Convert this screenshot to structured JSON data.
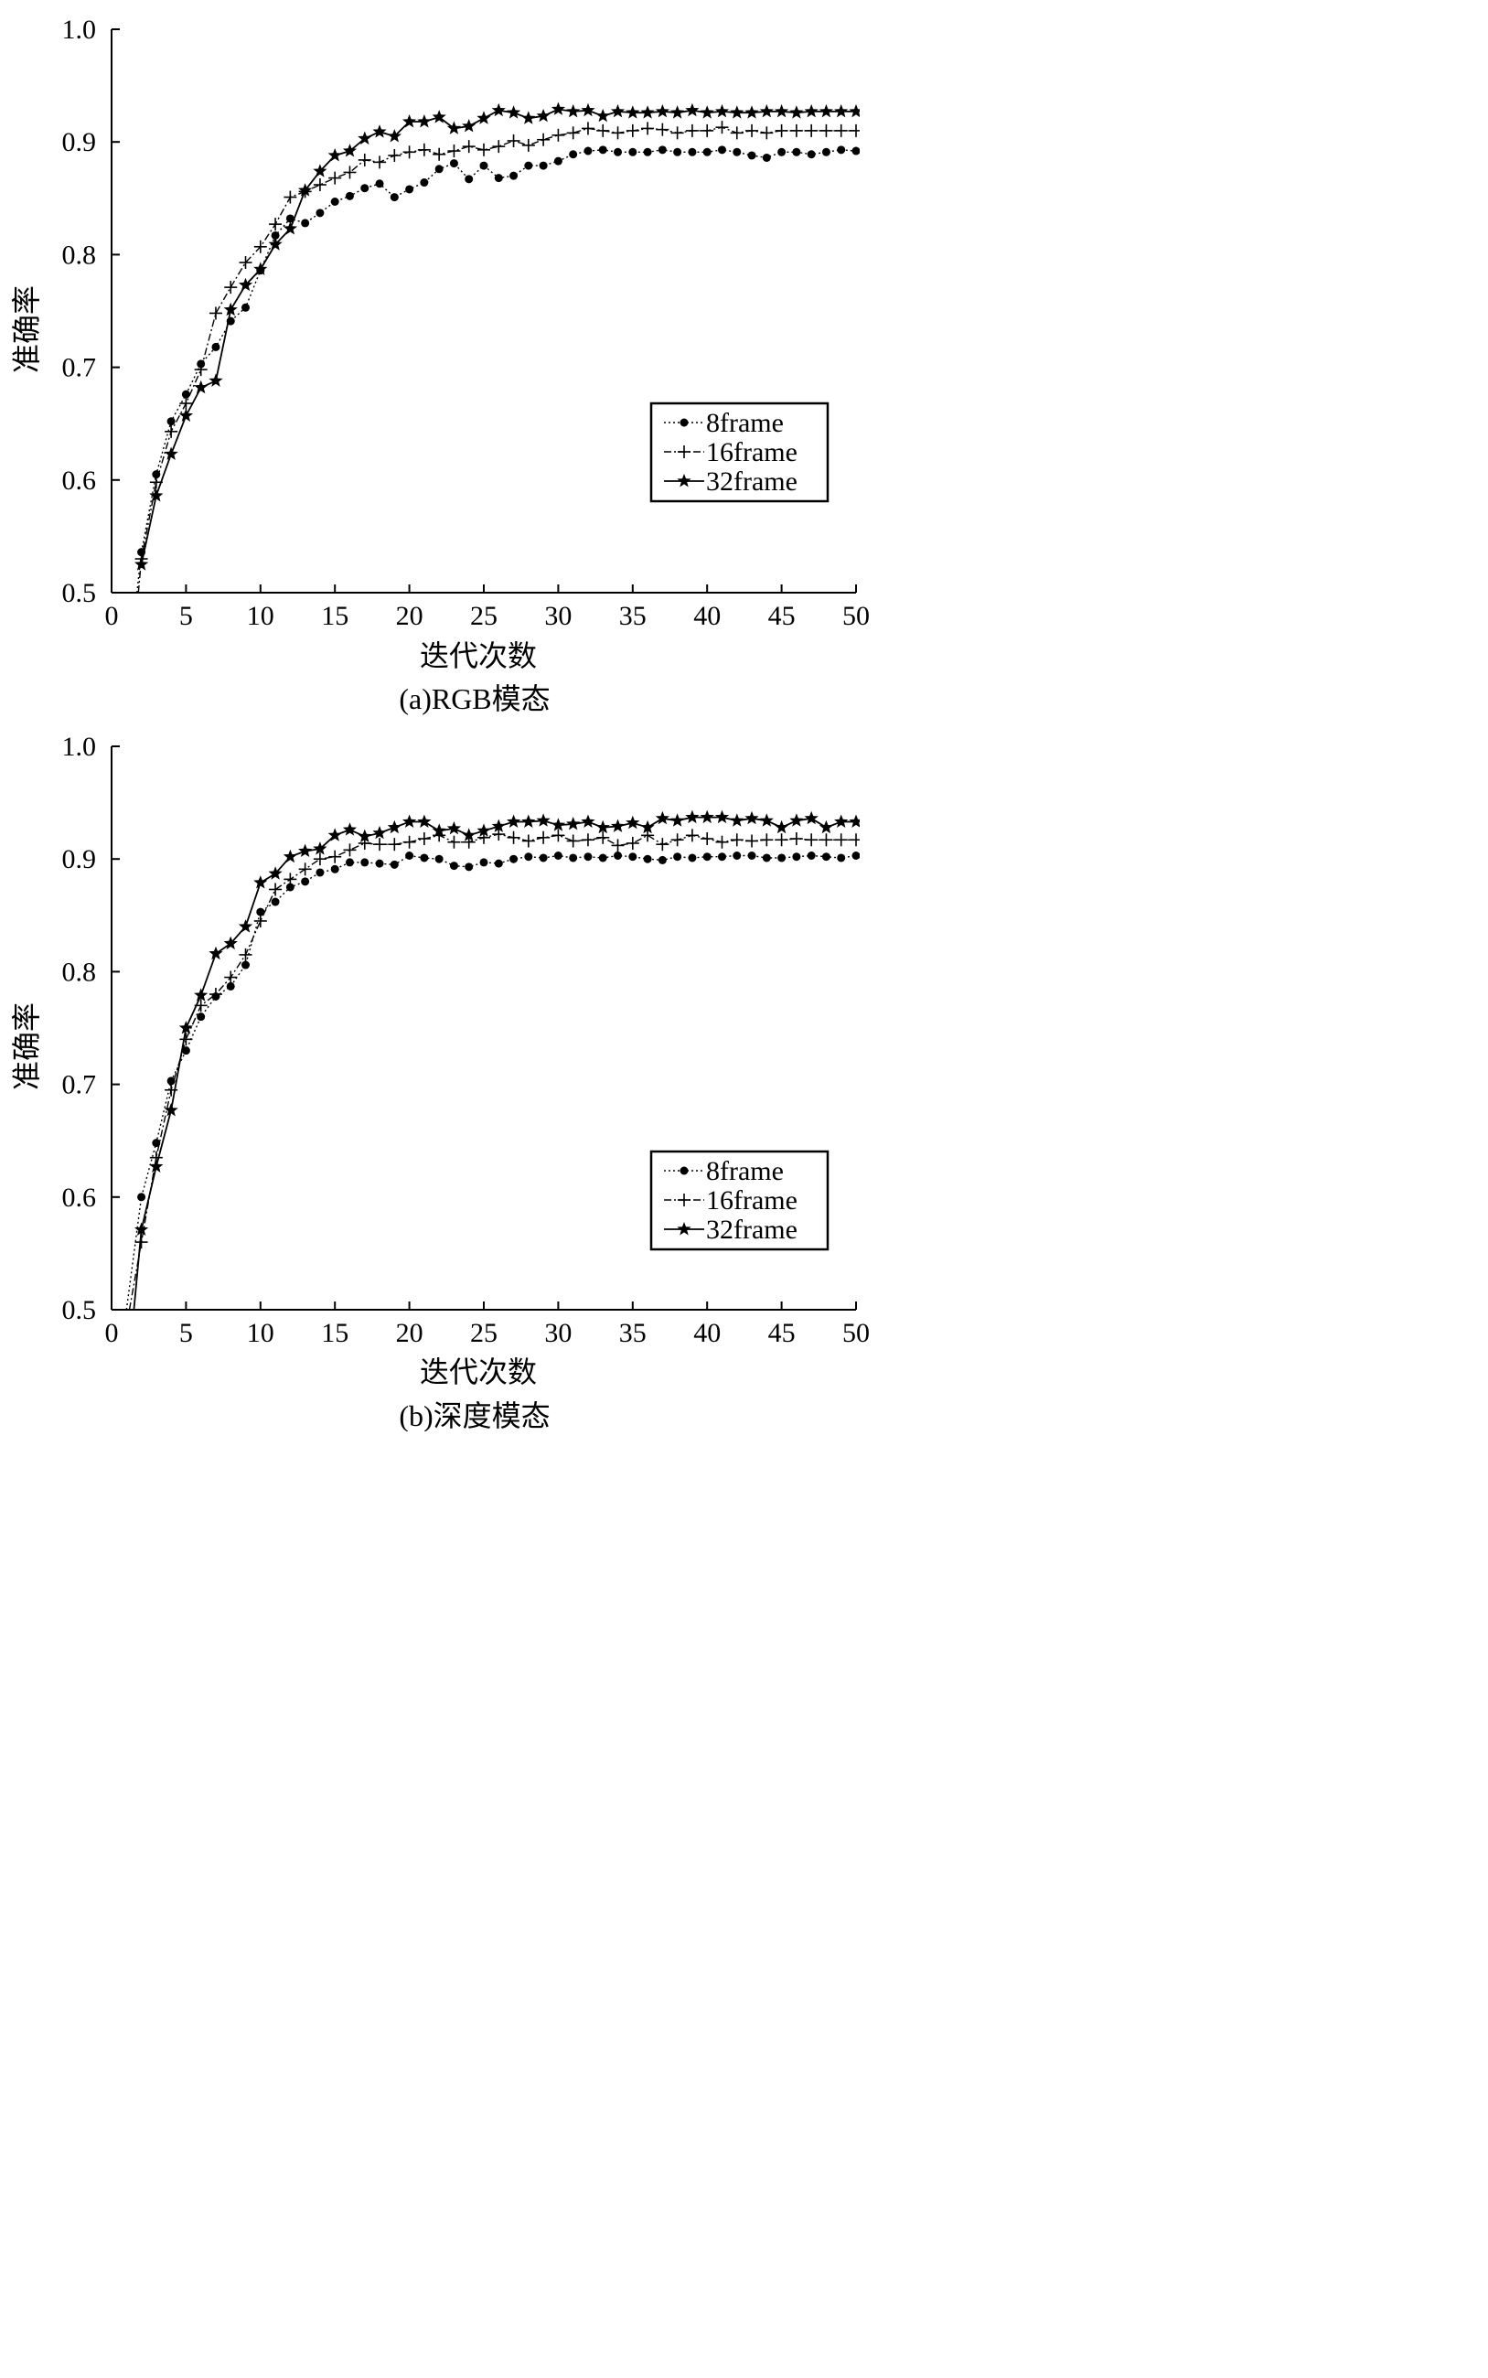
{
  "chart_data": [
    {
      "type": "line",
      "caption": "(a)RGB模态",
      "xlabel": "迭代次数",
      "ylabel": "准确率",
      "xlim": [
        0,
        50
      ],
      "ylim": [
        0.5,
        1.0
      ],
      "xticks": [
        "0",
        "5",
        "10",
        "15",
        "20",
        "25",
        "30",
        "35",
        "40",
        "45",
        "50"
      ],
      "yticks": [
        "0.5",
        "0.6",
        "0.7",
        "0.8",
        "0.9",
        "1.0"
      ],
      "legend_position": "lower-right",
      "series": [
        {
          "name": "8frame",
          "marker": "circle",
          "dash": "dotted",
          "x": [
            1.7,
            2,
            3,
            4,
            5,
            6,
            7,
            8,
            9,
            10,
            11,
            12,
            13,
            14,
            15,
            16,
            17,
            18,
            19,
            20,
            21,
            22,
            23,
            24,
            25,
            26,
            27,
            28,
            29,
            30,
            31,
            32,
            33,
            34,
            35,
            36,
            37,
            38,
            39,
            40,
            41,
            42,
            43,
            44,
            45,
            46,
            47,
            48,
            49,
            50
          ],
          "y": [
            0.5,
            0.536,
            0.605,
            0.652,
            0.676,
            0.703,
            0.718,
            0.741,
            0.753,
            0.786,
            0.817,
            0.832,
            0.828,
            0.837,
            0.847,
            0.852,
            0.859,
            0.863,
            0.851,
            0.858,
            0.864,
            0.876,
            0.881,
            0.867,
            0.879,
            0.868,
            0.87,
            0.879,
            0.879,
            0.883,
            0.889,
            0.892,
            0.893,
            0.891,
            0.891,
            0.891,
            0.893,
            0.891,
            0.891,
            0.891,
            0.893,
            0.891,
            0.888,
            0.886,
            0.891,
            0.891,
            0.889,
            0.891,
            0.893,
            0.892
          ]
        },
        {
          "name": "16frame",
          "marker": "plus",
          "dash": "dashdot",
          "x": [
            1.8,
            2,
            3,
            4,
            5,
            6,
            7,
            8,
            9,
            10,
            11,
            12,
            13,
            14,
            15,
            16,
            17,
            18,
            19,
            20,
            21,
            22,
            23,
            24,
            25,
            26,
            27,
            28,
            29,
            30,
            31,
            32,
            33,
            34,
            35,
            36,
            37,
            38,
            39,
            40,
            41,
            42,
            43,
            44,
            45,
            46,
            47,
            48,
            49,
            50
          ],
          "y": [
            0.5,
            0.53,
            0.598,
            0.643,
            0.668,
            0.698,
            0.748,
            0.771,
            0.793,
            0.807,
            0.827,
            0.851,
            0.856,
            0.862,
            0.868,
            0.873,
            0.884,
            0.882,
            0.888,
            0.891,
            0.893,
            0.889,
            0.892,
            0.896,
            0.893,
            0.896,
            0.901,
            0.897,
            0.902,
            0.906,
            0.908,
            0.912,
            0.91,
            0.908,
            0.91,
            0.912,
            0.911,
            0.908,
            0.91,
            0.91,
            0.913,
            0.908,
            0.91,
            0.908,
            0.91,
            0.91,
            0.91,
            0.91,
            0.91,
            0.91
          ]
        },
        {
          "name": "32frame",
          "marker": "star",
          "dash": "solid",
          "x": [
            2,
            3,
            4,
            5,
            6,
            7,
            8,
            9,
            10,
            11,
            12,
            13,
            14,
            15,
            16,
            17,
            18,
            19,
            20,
            21,
            22,
            23,
            24,
            25,
            26,
            27,
            28,
            29,
            30,
            31,
            32,
            33,
            34,
            35,
            36,
            37,
            38,
            39,
            40,
            41,
            42,
            43,
            44,
            45,
            46,
            47,
            48,
            49,
            50
          ],
          "y": [
            0.525,
            0.586,
            0.623,
            0.657,
            0.682,
            0.688,
            0.751,
            0.773,
            0.787,
            0.809,
            0.823,
            0.857,
            0.874,
            0.888,
            0.892,
            0.903,
            0.909,
            0.905,
            0.918,
            0.918,
            0.922,
            0.912,
            0.914,
            0.921,
            0.928,
            0.926,
            0.921,
            0.923,
            0.929,
            0.927,
            0.928,
            0.923,
            0.927,
            0.926,
            0.926,
            0.927,
            0.926,
            0.928,
            0.926,
            0.927,
            0.926,
            0.926,
            0.927,
            0.927,
            0.926,
            0.927,
            0.927,
            0.927,
            0.927
          ]
        }
      ]
    },
    {
      "type": "line",
      "caption": "(b)深度模态",
      "xlabel": "迭代次数",
      "ylabel": "准确率",
      "xlim": [
        0,
        50
      ],
      "ylim": [
        0.5,
        1.0
      ],
      "xticks": [
        "0",
        "5",
        "10",
        "15",
        "20",
        "25",
        "30",
        "35",
        "40",
        "45",
        "50"
      ],
      "yticks": [
        "0.5",
        "0.6",
        "0.7",
        "0.8",
        "0.9",
        "1.0"
      ],
      "legend_position": "lower-right",
      "series": [
        {
          "name": "8frame",
          "marker": "circle",
          "dash": "dotted",
          "x": [
            1,
            2,
            3,
            4,
            5,
            6,
            7,
            8,
            9,
            10,
            11,
            12,
            13,
            14,
            15,
            16,
            17,
            18,
            19,
            20,
            21,
            22,
            23,
            24,
            25,
            26,
            27,
            28,
            29,
            30,
            31,
            32,
            33,
            34,
            35,
            36,
            37,
            38,
            39,
            40,
            41,
            42,
            43,
            44,
            45,
            46,
            47,
            48,
            49,
            50
          ],
          "y": [
            0.5,
            0.6,
            0.648,
            0.703,
            0.73,
            0.76,
            0.778,
            0.787,
            0.806,
            0.853,
            0.862,
            0.875,
            0.88,
            0.888,
            0.891,
            0.897,
            0.897,
            0.896,
            0.895,
            0.903,
            0.901,
            0.9,
            0.894,
            0.893,
            0.897,
            0.896,
            0.9,
            0.902,
            0.901,
            0.903,
            0.901,
            0.902,
            0.901,
            0.903,
            0.902,
            0.9,
            0.899,
            0.902,
            0.901,
            0.902,
            0.902,
            0.903,
            0.903,
            0.901,
            0.901,
            0.902,
            0.903,
            0.902,
            0.901,
            0.903
          ]
        },
        {
          "name": "16frame",
          "marker": "plus",
          "dash": "dashdot",
          "x": [
            1.2,
            2,
            3,
            4,
            5,
            6,
            7,
            8,
            9,
            10,
            11,
            12,
            13,
            14,
            15,
            16,
            17,
            18,
            19,
            20,
            21,
            22,
            23,
            24,
            25,
            26,
            27,
            28,
            29,
            30,
            31,
            32,
            33,
            34,
            35,
            36,
            37,
            38,
            39,
            40,
            41,
            42,
            43,
            44,
            45,
            46,
            47,
            48,
            49,
            50
          ],
          "y": [
            0.5,
            0.56,
            0.635,
            0.695,
            0.74,
            0.77,
            0.78,
            0.795,
            0.815,
            0.845,
            0.873,
            0.882,
            0.891,
            0.9,
            0.902,
            0.908,
            0.914,
            0.913,
            0.913,
            0.915,
            0.918,
            0.921,
            0.915,
            0.915,
            0.919,
            0.922,
            0.919,
            0.916,
            0.919,
            0.921,
            0.916,
            0.917,
            0.919,
            0.912,
            0.914,
            0.921,
            0.913,
            0.917,
            0.921,
            0.918,
            0.915,
            0.917,
            0.916,
            0.917,
            0.917,
            0.918,
            0.917,
            0.917,
            0.917,
            0.917
          ]
        },
        {
          "name": "32frame",
          "marker": "star",
          "dash": "solid",
          "x": [
            1.5,
            2,
            3,
            4,
            5,
            6,
            7,
            8,
            9,
            10,
            11,
            12,
            13,
            14,
            15,
            16,
            17,
            18,
            19,
            20,
            21,
            22,
            23,
            24,
            25,
            26,
            27,
            28,
            29,
            30,
            31,
            32,
            33,
            34,
            35,
            36,
            37,
            38,
            39,
            40,
            41,
            42,
            43,
            44,
            45,
            46,
            47,
            48,
            49,
            50
          ],
          "y": [
            0.5,
            0.571,
            0.627,
            0.677,
            0.75,
            0.779,
            0.816,
            0.825,
            0.84,
            0.879,
            0.887,
            0.902,
            0.907,
            0.909,
            0.921,
            0.926,
            0.92,
            0.923,
            0.928,
            0.933,
            0.933,
            0.925,
            0.927,
            0.921,
            0.925,
            0.929,
            0.933,
            0.933,
            0.934,
            0.93,
            0.931,
            0.933,
            0.928,
            0.929,
            0.932,
            0.928,
            0.936,
            0.934,
            0.937,
            0.937,
            0.937,
            0.934,
            0.936,
            0.934,
            0.928,
            0.934,
            0.936,
            0.928,
            0.933,
            0.933
          ]
        }
      ]
    }
  ]
}
